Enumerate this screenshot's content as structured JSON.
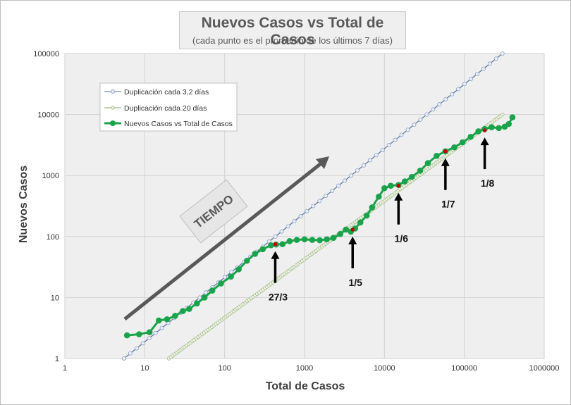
{
  "title": "Nuevos Casos vs Total de Casos",
  "subtitle": "(cada punto es el promedio de los últimos 7 días)",
  "chart_data": {
    "type": "scatter",
    "xlabel": "Total de Casos",
    "ylabel": "Nuevos Casos",
    "xscale": "log",
    "yscale": "log",
    "xlim": [
      1,
      1000000
    ],
    "ylim": [
      1,
      100000
    ],
    "x_ticks": [
      "1",
      "10",
      "100",
      "1000",
      "10000",
      "100000",
      "1000000"
    ],
    "y_ticks": [
      "1",
      "10",
      "100",
      "1000",
      "10000",
      "100000"
    ],
    "grid": true,
    "legend_position": "top-left",
    "series": [
      {
        "name": "Duplicación cada 3,2 días",
        "color": "#8fa3c8",
        "x": [
          5.5,
          300000
        ],
        "y": [
          1,
          100000
        ]
      },
      {
        "name": "Duplicación cada 20 días",
        "color": "#a6bb8a",
        "x": [
          20,
          300000
        ],
        "y": [
          1,
          10000
        ]
      },
      {
        "name": "Nuevos Casos vs Total de Casos",
        "color": "#1aa34a",
        "x": [
          6,
          8.5,
          11.5,
          15,
          19,
          24,
          30,
          36,
          45,
          56,
          70,
          90,
          120,
          150,
          190,
          240,
          300,
          380,
          440,
          530,
          650,
          800,
          1000,
          1250,
          1550,
          1900,
          2300,
          2800,
          3300,
          3800,
          4300,
          5000,
          6000,
          7000,
          8500,
          10000,
          12000,
          15000,
          18000,
          22000,
          28000,
          35000,
          45000,
          58000,
          75000,
          95000,
          120000,
          150000,
          180000,
          220000,
          270000,
          320000,
          360000,
          400000
        ],
        "y": [
          2.4,
          2.5,
          2.7,
          4.2,
          4.4,
          5,
          6,
          6.5,
          8,
          10,
          13,
          17,
          22,
          29,
          40,
          52,
          62,
          72,
          74,
          75,
          84,
          88,
          90,
          88,
          87,
          90,
          95,
          110,
          130,
          120,
          135,
          170,
          220,
          300,
          450,
          620,
          680,
          700,
          800,
          950,
          1200,
          1600,
          2100,
          2500,
          2900,
          3500,
          4300,
          5300,
          5800,
          6200,
          6000,
          6300,
          7000,
          9000
        ]
      }
    ],
    "annotations": [
      {
        "text": "27/3",
        "x": 430,
        "y": 75
      },
      {
        "text": "1/5",
        "x": 4000,
        "y": 130
      },
      {
        "text": "1/6",
        "x": 15000,
        "y": 680
      },
      {
        "text": "1/7",
        "x": 58000,
        "y": 2500
      },
      {
        "text": "1/8",
        "x": 180000,
        "y": 5500
      }
    ],
    "trend_label": "TIEMPO"
  }
}
